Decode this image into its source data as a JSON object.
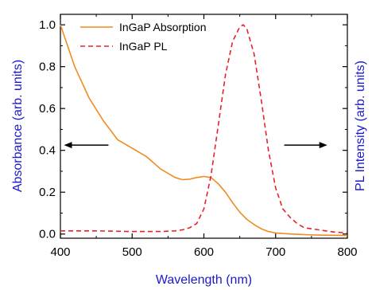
{
  "chart_data": {
    "type": "line",
    "title": "",
    "xlabel": "Wavelength (nm)",
    "ylabel_left": "Absorbance (arb. units)",
    "ylabel_right": "PL Intensity (arb. units)",
    "xlim": [
      400,
      800
    ],
    "ylim": [
      -0.02,
      1.05
    ],
    "xticks": [
      400,
      500,
      600,
      700,
      800
    ],
    "xtick_labels": [
      "400",
      "500",
      "600",
      "700",
      "800"
    ],
    "yticks": [
      0.0,
      0.2,
      0.4,
      0.6,
      0.8,
      1.0
    ],
    "ytick_labels": [
      "0.0",
      "0.2",
      "0.4",
      "0.6",
      "0.8",
      "1.0"
    ],
    "grid": false,
    "legend_position": "top-left",
    "series": [
      {
        "name": "InGaP Absorption",
        "color": "#f08c1e",
        "style": "solid",
        "x": [
          400,
          420,
          440,
          460,
          480,
          500,
          520,
          540,
          560,
          570,
          580,
          590,
          600,
          610,
          620,
          630,
          640,
          650,
          660,
          670,
          680,
          690,
          700,
          720,
          740,
          760,
          780,
          800
        ],
        "y": [
          1.0,
          0.8,
          0.65,
          0.54,
          0.45,
          0.41,
          0.37,
          0.31,
          0.27,
          0.26,
          0.262,
          0.27,
          0.275,
          0.27,
          0.24,
          0.2,
          0.15,
          0.105,
          0.07,
          0.045,
          0.025,
          0.012,
          0.005,
          0.0,
          -0.003,
          -0.005,
          -0.006,
          -0.007
        ]
      },
      {
        "name": "InGaP PL",
        "color": "#e8222a",
        "style": "dashed",
        "x": [
          400,
          450,
          500,
          540,
          560,
          570,
          580,
          590,
          600,
          610,
          620,
          630,
          640,
          650,
          655,
          660,
          670,
          680,
          690,
          700,
          710,
          720,
          730,
          740,
          760,
          780,
          800
        ],
        "y": [
          0.015,
          0.015,
          0.012,
          0.012,
          0.015,
          0.02,
          0.03,
          0.05,
          0.12,
          0.28,
          0.52,
          0.76,
          0.92,
          0.99,
          1.0,
          0.98,
          0.86,
          0.64,
          0.4,
          0.22,
          0.12,
          0.08,
          0.05,
          0.03,
          0.02,
          0.01,
          0.005
        ]
      }
    ],
    "annotations": [
      {
        "type": "arrow",
        "direction": "left",
        "label": ""
      },
      {
        "type": "arrow",
        "direction": "right",
        "label": ""
      }
    ]
  }
}
